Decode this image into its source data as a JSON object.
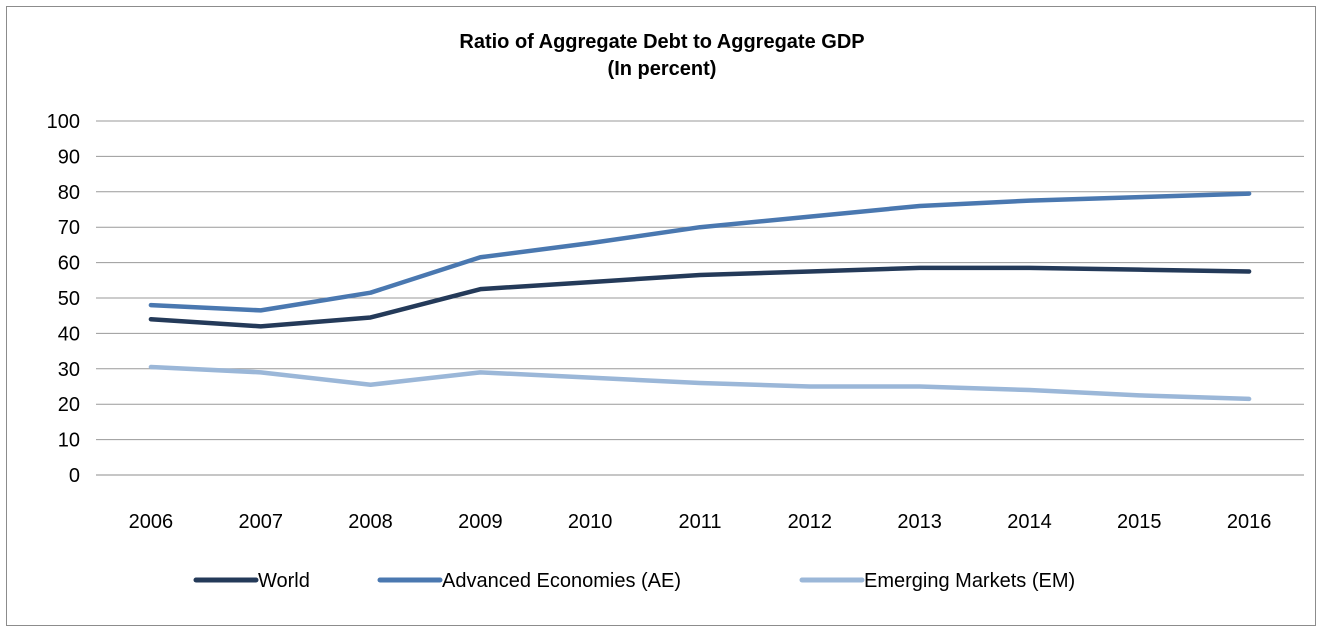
{
  "chart_data": {
    "type": "line",
    "title": "Ratio of Aggregate Debt to Aggregate GDP",
    "subtitle": "(In percent)",
    "xlabel": "",
    "ylabel": "",
    "categories": [
      "2006",
      "2007",
      "2008",
      "2009",
      "2010",
      "2011",
      "2012",
      "2013",
      "2014",
      "2015",
      "2016"
    ],
    "ylim": [
      0,
      100
    ],
    "yticks": [
      0,
      10,
      20,
      30,
      40,
      50,
      60,
      70,
      80,
      90,
      100
    ],
    "grid": true,
    "legend_position": "bottom",
    "series": [
      {
        "name": "World",
        "color": "#243a59",
        "values": [
          44,
          42,
          44.5,
          52.5,
          54.5,
          56.5,
          57.5,
          58.5,
          58.5,
          58,
          57.5
        ]
      },
      {
        "name": "Advanced Economies (AE)",
        "color": "#4a78b0",
        "values": [
          48,
          46.5,
          51.5,
          61.5,
          65.5,
          70,
          73,
          76,
          77.5,
          78.5,
          79.5
        ]
      },
      {
        "name": "Emerging Markets (EM)",
        "color": "#9bb7d8",
        "values": [
          30.5,
          29,
          25.5,
          29,
          27.5,
          26,
          25,
          25,
          24,
          22.5,
          21.5
        ]
      }
    ]
  }
}
